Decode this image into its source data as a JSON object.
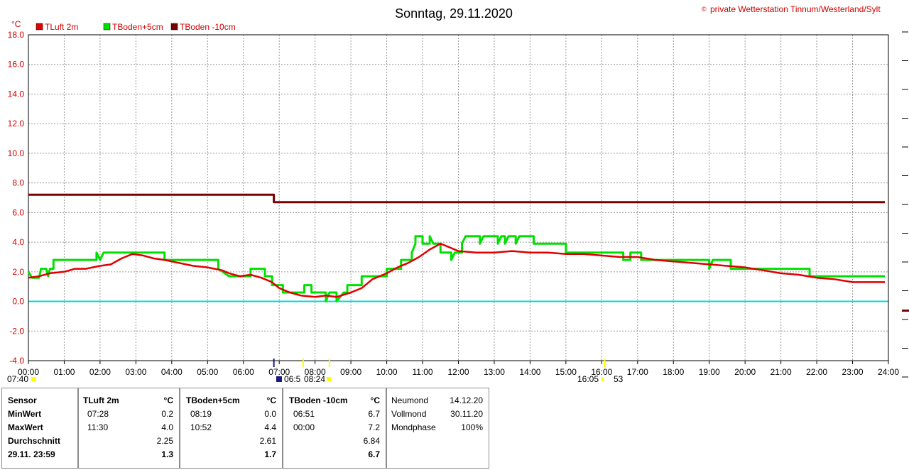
{
  "header": {
    "title": "Sonntag, 29.11.2020",
    "copyright_symbol": "©",
    "copyright": "private Wetterstation Tinnum/Westerland/Sylt"
  },
  "chart_data": {
    "type": "line",
    "title": "Sonntag, 29.11.2020",
    "ylabel": "°C",
    "ylim": [
      -4,
      18
    ],
    "yticks": [
      "18.0",
      "16.0",
      "14.0",
      "12.0",
      "10.0",
      "8.0",
      "6.0",
      "4.0",
      "2.0",
      "0.0",
      "-2.0",
      "-4.0"
    ],
    "xlim": [
      0,
      24
    ],
    "xticks": [
      "00:00",
      "01:00",
      "02:00",
      "03:00",
      "04:00",
      "05:00",
      "06:00",
      "07:00",
      "08:00",
      "09:00",
      "10:00",
      "11:00",
      "12:00",
      "13:00",
      "14:00",
      "15:00",
      "16:00",
      "17:00",
      "18:00",
      "19:00",
      "20:00",
      "21:00",
      "22:00",
      "23:00",
      "24:00"
    ],
    "grid": true,
    "legend_position": "top-left",
    "zero_line_color": "#00d8d8",
    "sun_labels": {
      "sunrise": "07:40",
      "sunset": "16:05"
    },
    "moon_labels": {
      "moonset": "06:5",
      "moonrise_a": "08:24",
      "moonrise_b": "53"
    },
    "series": [
      {
        "name": "TLuft 2m",
        "color": "#e00000",
        "points": [
          [
            0,
            1.6
          ],
          [
            0.3,
            1.7
          ],
          [
            0.6,
            1.9
          ],
          [
            1,
            2.0
          ],
          [
            1.3,
            2.2
          ],
          [
            1.6,
            2.2
          ],
          [
            2,
            2.4
          ],
          [
            2.3,
            2.5
          ],
          [
            2.6,
            2.9
          ],
          [
            2.9,
            3.2
          ],
          [
            3.2,
            3.1
          ],
          [
            3.5,
            2.9
          ],
          [
            3.8,
            2.8
          ],
          [
            4.2,
            2.6
          ],
          [
            4.6,
            2.4
          ],
          [
            5.0,
            2.3
          ],
          [
            5.4,
            2.1
          ],
          [
            5.6,
            1.9
          ],
          [
            5.9,
            1.7
          ],
          [
            6.2,
            1.8
          ],
          [
            6.5,
            1.6
          ],
          [
            6.8,
            1.3
          ],
          [
            7.0,
            0.9
          ],
          [
            7.3,
            0.6
          ],
          [
            7.6,
            0.4
          ],
          [
            8.0,
            0.3
          ],
          [
            8.3,
            0.4
          ],
          [
            8.6,
            0.3
          ],
          [
            9.0,
            0.6
          ],
          [
            9.3,
            0.9
          ],
          [
            9.6,
            1.5
          ],
          [
            10.0,
            1.9
          ],
          [
            10.3,
            2.3
          ],
          [
            10.6,
            2.6
          ],
          [
            10.9,
            3.0
          ],
          [
            11.2,
            3.5
          ],
          [
            11.5,
            3.9
          ],
          [
            11.8,
            3.6
          ],
          [
            12.0,
            3.4
          ],
          [
            12.5,
            3.3
          ],
          [
            13.0,
            3.3
          ],
          [
            13.5,
            3.4
          ],
          [
            14.0,
            3.3
          ],
          [
            14.5,
            3.3
          ],
          [
            15.0,
            3.2
          ],
          [
            15.5,
            3.2
          ],
          [
            16.0,
            3.1
          ],
          [
            16.5,
            3.0
          ],
          [
            17.0,
            3.0
          ],
          [
            17.5,
            2.8
          ],
          [
            18.0,
            2.7
          ],
          [
            18.5,
            2.6
          ],
          [
            19.0,
            2.5
          ],
          [
            19.5,
            2.4
          ],
          [
            20.0,
            2.3
          ],
          [
            20.5,
            2.1
          ],
          [
            21.0,
            1.9
          ],
          [
            21.5,
            1.8
          ],
          [
            22.0,
            1.6
          ],
          [
            22.5,
            1.5
          ],
          [
            23.0,
            1.3
          ],
          [
            23.5,
            1.3
          ],
          [
            23.9,
            1.3
          ]
        ]
      },
      {
        "name": "TBoden+5cm",
        "color": "#00e000",
        "points": [
          [
            0,
            2.0
          ],
          [
            0.1,
            1.6
          ],
          [
            0.3,
            1.6
          ],
          [
            0.35,
            2.2
          ],
          [
            0.5,
            2.2
          ],
          [
            0.55,
            1.7
          ],
          [
            0.6,
            2.2
          ],
          [
            0.7,
            2.2
          ],
          [
            0.7,
            2.8
          ],
          [
            1.9,
            2.8
          ],
          [
            1.9,
            3.3
          ],
          [
            2.0,
            2.8
          ],
          [
            2.1,
            3.3
          ],
          [
            3.8,
            3.3
          ],
          [
            3.8,
            2.8
          ],
          [
            5.3,
            2.8
          ],
          [
            5.3,
            2.2
          ],
          [
            5.6,
            1.7
          ],
          [
            6.2,
            1.7
          ],
          [
            6.2,
            2.2
          ],
          [
            6.6,
            2.2
          ],
          [
            6.6,
            1.7
          ],
          [
            6.8,
            1.7
          ],
          [
            6.8,
            1.1
          ],
          [
            7.1,
            1.1
          ],
          [
            7.1,
            0.6
          ],
          [
            7.7,
            0.6
          ],
          [
            7.7,
            1.1
          ],
          [
            7.9,
            1.1
          ],
          [
            7.9,
            0.6
          ],
          [
            8.3,
            0.6
          ],
          [
            8.3,
            0.0
          ],
          [
            8.4,
            0.6
          ],
          [
            8.6,
            0.6
          ],
          [
            8.6,
            0.0
          ],
          [
            8.8,
            0.6
          ],
          [
            8.9,
            0.6
          ],
          [
            8.9,
            1.1
          ],
          [
            9.3,
            1.1
          ],
          [
            9.3,
            1.7
          ],
          [
            10.0,
            1.7
          ],
          [
            10.0,
            2.2
          ],
          [
            10.4,
            2.2
          ],
          [
            10.4,
            2.8
          ],
          [
            10.7,
            2.8
          ],
          [
            10.7,
            3.3
          ],
          [
            10.8,
            3.9
          ],
          [
            10.8,
            4.4
          ],
          [
            11.0,
            4.4
          ],
          [
            11.0,
            3.9
          ],
          [
            11.2,
            3.9
          ],
          [
            11.2,
            4.4
          ],
          [
            11.3,
            3.9
          ],
          [
            11.5,
            3.9
          ],
          [
            11.5,
            3.3
          ],
          [
            11.8,
            3.3
          ],
          [
            11.8,
            2.8
          ],
          [
            11.9,
            3.3
          ],
          [
            12.1,
            3.3
          ],
          [
            12.1,
            3.9
          ],
          [
            12.2,
            4.4
          ],
          [
            12.6,
            4.4
          ],
          [
            12.6,
            3.9
          ],
          [
            12.7,
            4.4
          ],
          [
            13.1,
            4.4
          ],
          [
            13.1,
            3.9
          ],
          [
            13.2,
            4.4
          ],
          [
            13.3,
            4.4
          ],
          [
            13.3,
            3.9
          ],
          [
            13.4,
            4.4
          ],
          [
            13.6,
            4.4
          ],
          [
            13.6,
            3.9
          ],
          [
            13.7,
            4.4
          ],
          [
            14.1,
            4.4
          ],
          [
            14.1,
            3.9
          ],
          [
            15.0,
            3.9
          ],
          [
            15.0,
            3.3
          ],
          [
            16.6,
            3.3
          ],
          [
            16.6,
            2.8
          ],
          [
            16.8,
            2.8
          ],
          [
            16.8,
            3.3
          ],
          [
            17.1,
            3.3
          ],
          [
            17.1,
            2.8
          ],
          [
            19.0,
            2.8
          ],
          [
            19.0,
            2.2
          ],
          [
            19.1,
            2.8
          ],
          [
            19.6,
            2.8
          ],
          [
            19.6,
            2.2
          ],
          [
            21.8,
            2.2
          ],
          [
            21.8,
            1.7
          ],
          [
            23.9,
            1.7
          ]
        ]
      },
      {
        "name": "TBoden -10cm",
        "color": "#780000",
        "points": [
          [
            0,
            7.2
          ],
          [
            6.85,
            7.2
          ],
          [
            6.85,
            6.7
          ],
          [
            23.9,
            6.7
          ]
        ]
      }
    ]
  },
  "stats_table": {
    "sensor": {
      "header": "Sensor",
      "rows": [
        "MinWert",
        "MaxWert",
        "Durchschnitt",
        "29.11. 23:59"
      ]
    },
    "columns": [
      {
        "header": "TLuft 2m",
        "unit": "°C",
        "min_time": "07:28",
        "min_val": "0.2",
        "max_time": "11:30",
        "max_val": "4.0",
        "avg": "2.25",
        "current": "1.3"
      },
      {
        "header": "TBoden+5cm",
        "unit": "°C",
        "min_time": "08:19",
        "min_val": "0.0",
        "max_time": "10:52",
        "max_val": "4.4",
        "avg": "2.61",
        "current": "1.7"
      },
      {
        "header": "TBoden -10cm",
        "unit": "°C",
        "min_time": "06:51",
        "min_val": "6.7",
        "max_time": "00:00",
        "max_val": "7.2",
        "avg": "6.84",
        "current": "6.7"
      }
    ],
    "moon": {
      "neumond_label": "Neumond",
      "neumond_date": "14.12.20",
      "vollmond_label": "Vollmond",
      "vollmond_date": "30.11.20",
      "mondphase_label": "Mondphase",
      "mondphase_value": "100%"
    }
  }
}
